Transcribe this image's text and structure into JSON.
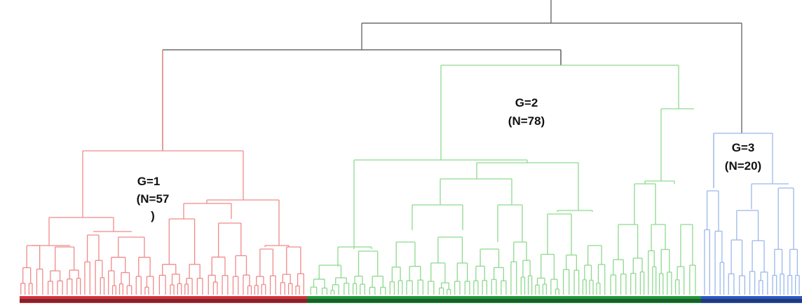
{
  "colors": {
    "root": "#6b6b6b",
    "cluster1": "#f08a8a",
    "cluster2": "#8ed98e",
    "cluster3": "#9bb8ec",
    "cluster1_bar": "#d8323c",
    "cluster2_bar": "#1f9a3a",
    "cluster3_bar": "#2d59c8",
    "bar_dark": "#151515"
  },
  "clusters": [
    {
      "id": "g1",
      "group_label": "G=1",
      "count_label": "(N=57",
      "count_label_tail": ")"
    },
    {
      "id": "g2",
      "group_label": "G=2",
      "count_label": "(N=78)"
    },
    {
      "id": "g3",
      "group_label": "G=3",
      "count_label": "(N=20)"
    }
  ]
}
